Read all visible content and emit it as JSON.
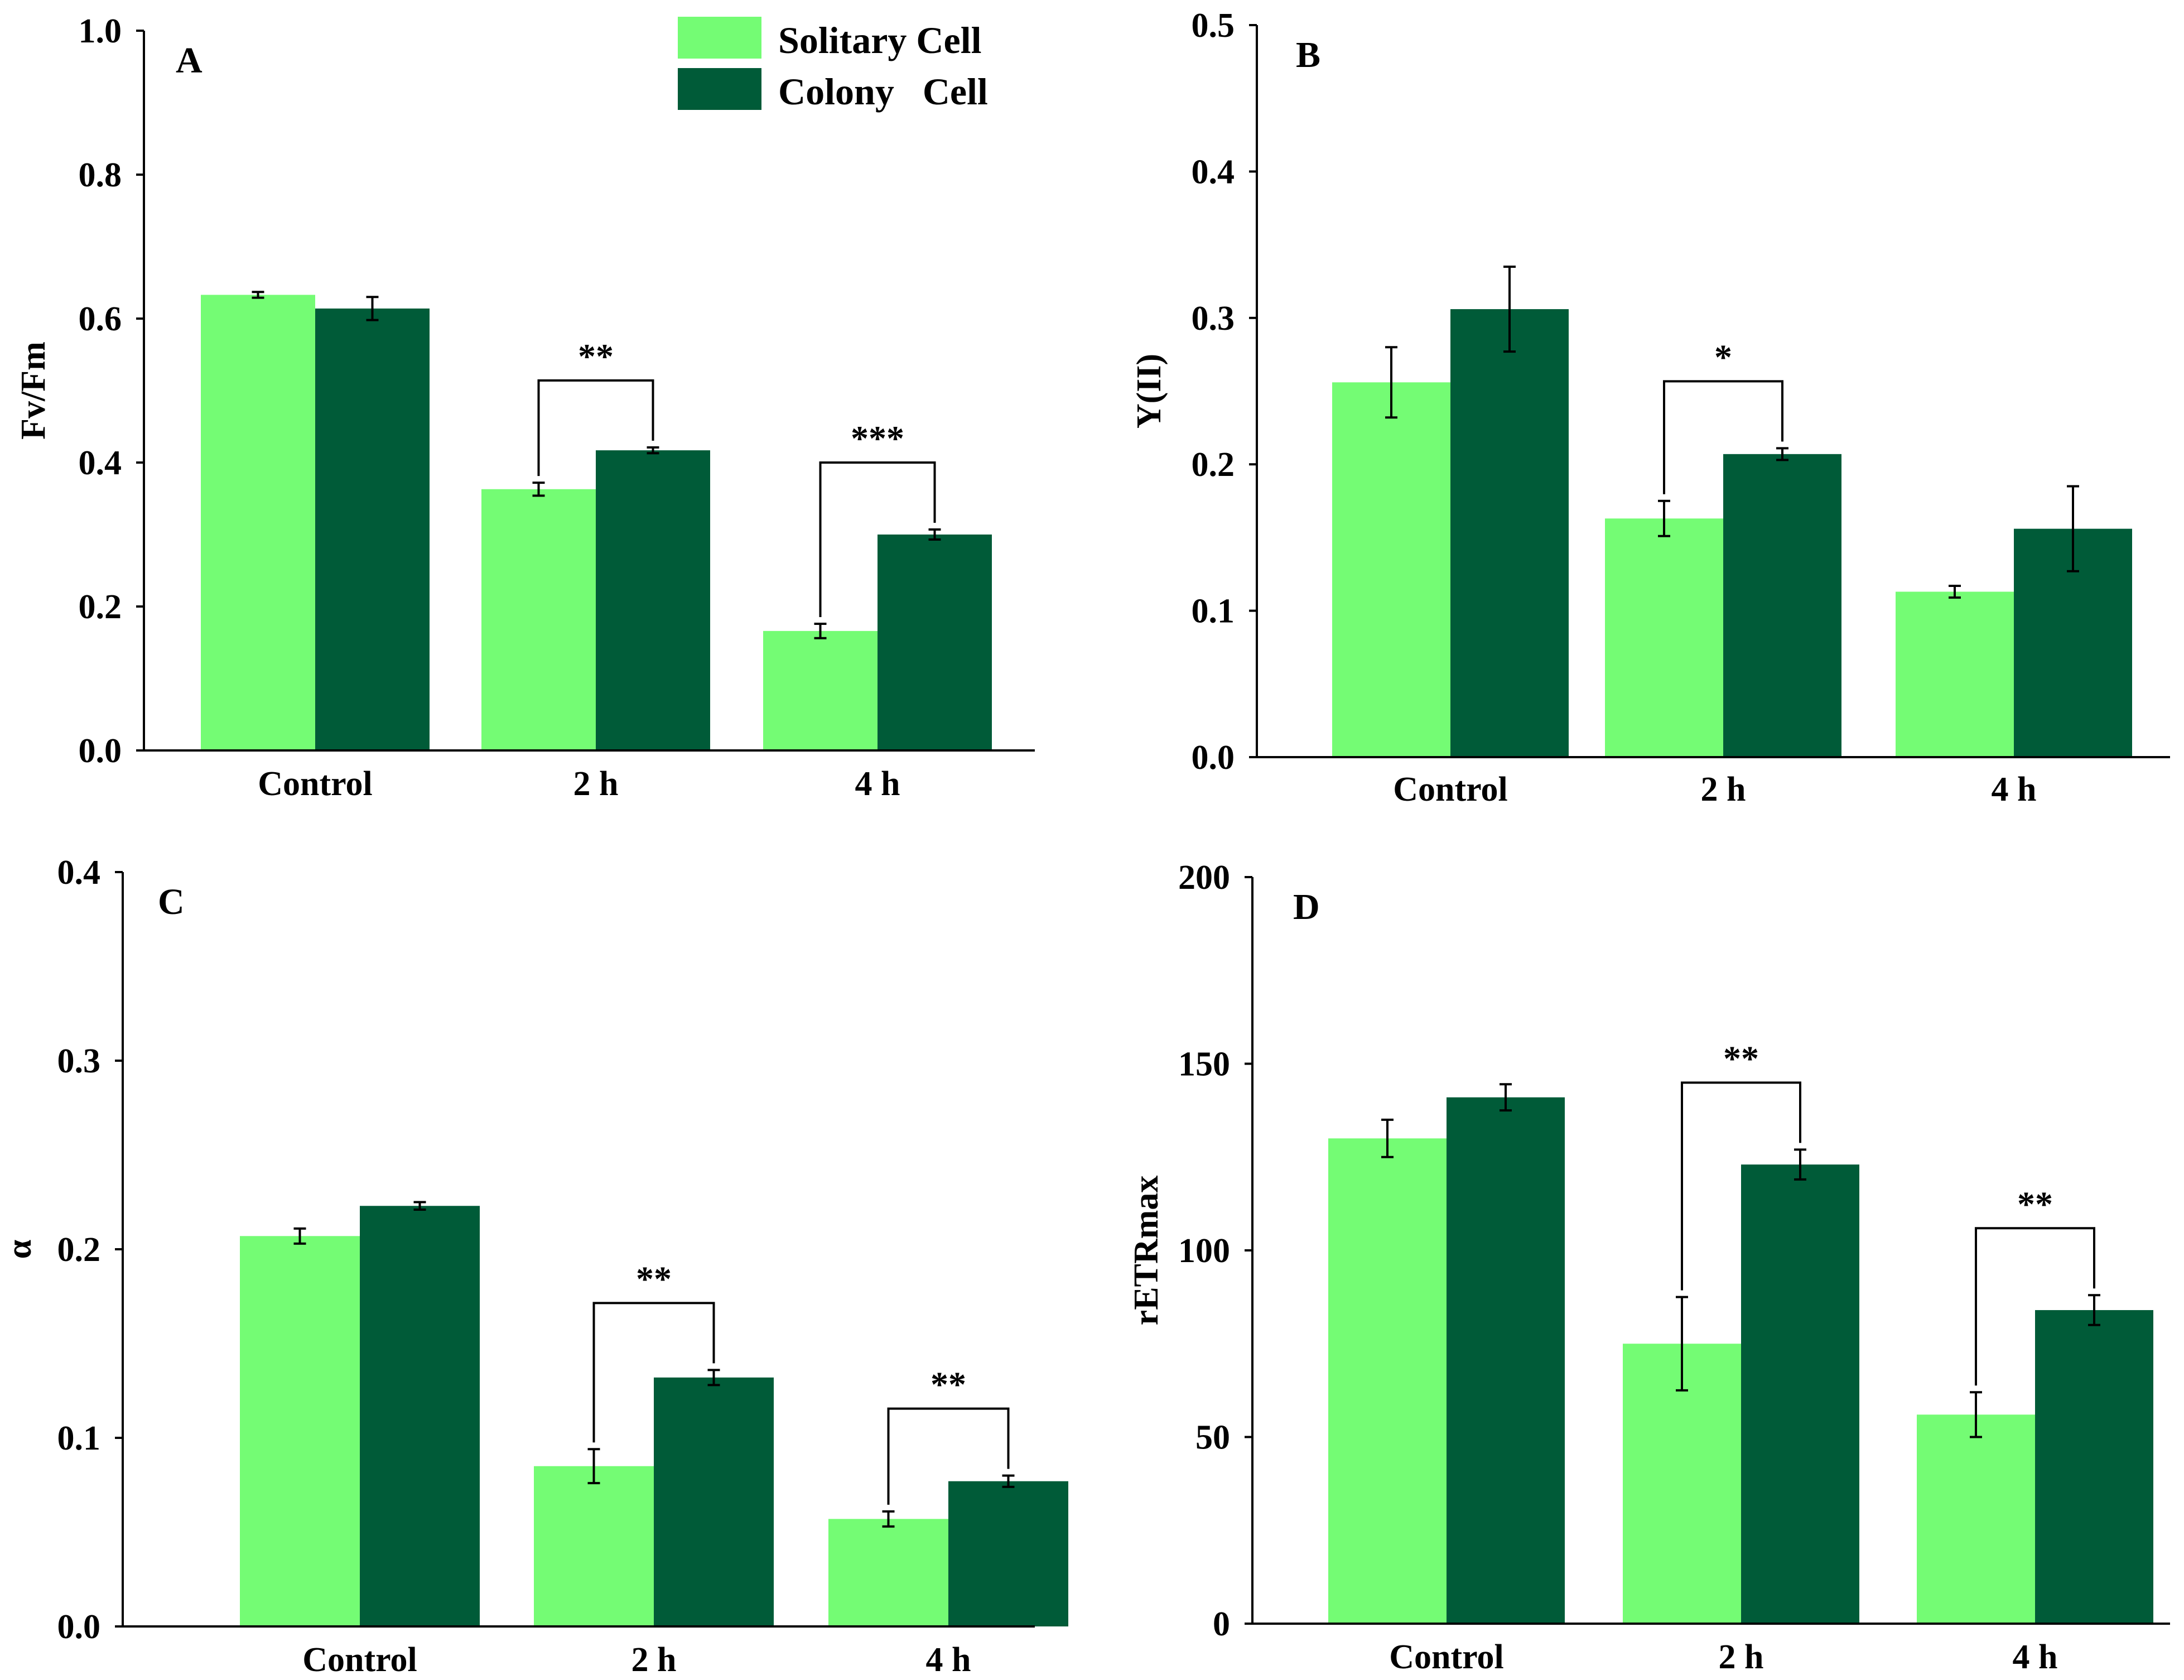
{
  "legend": {
    "entries": [
      {
        "label": "Solitary Cell",
        "color": "#74fc74"
      },
      {
        "label": "Colony   Cell",
        "color": "#005b38"
      }
    ]
  },
  "chart_data": [
    {
      "panel": "A",
      "type": "bar",
      "ylabel": "Fv/Fm",
      "ylim": [
        0,
        1.0
      ],
      "yticks": [
        "0.0",
        "0.2",
        "0.4",
        "0.6",
        "0.8",
        "1.0"
      ],
      "categories": [
        "Control",
        "2 h",
        "4 h"
      ],
      "series": [
        {
          "name": "Solitary Cell",
          "color": "#74fc74",
          "values": [
            0.633,
            0.363,
            0.166
          ],
          "errors": [
            0.004,
            0.009,
            0.01
          ]
        },
        {
          "name": "Colony   Cell",
          "color": "#005b38",
          "values": [
            0.614,
            0.417,
            0.3
          ],
          "errors": [
            0.016,
            0.004,
            0.007
          ]
        }
      ],
      "significance": [
        {
          "category": "2 h",
          "label": "**"
        },
        {
          "category": "4 h",
          "label": "***"
        }
      ]
    },
    {
      "panel": "B",
      "type": "bar",
      "ylabel": "Y(II)",
      "ylim": [
        0,
        0.5
      ],
      "yticks": [
        "0.0",
        "0.1",
        "0.2",
        "0.3",
        "0.4",
        "0.5"
      ],
      "categories": [
        "Control",
        "2 h",
        "4 h"
      ],
      "series": [
        {
          "name": "Solitary Cell",
          "color": "#74fc74",
          "values": [
            0.256,
            0.163,
            0.113
          ],
          "errors": [
            0.024,
            0.012,
            0.004
          ]
        },
        {
          "name": "Colony   Cell",
          "color": "#005b38",
          "values": [
            0.306,
            0.207,
            0.156
          ],
          "errors": [
            0.029,
            0.004,
            0.029
          ]
        }
      ],
      "significance": [
        {
          "category": "2 h",
          "label": "*"
        }
      ]
    },
    {
      "panel": "C",
      "type": "bar",
      "ylabel": "α",
      "ylim": [
        0,
        0.4
      ],
      "yticks": [
        "0.0",
        "0.1",
        "0.2",
        "0.3",
        "0.4"
      ],
      "categories": [
        "Control",
        "2 h",
        "4 h"
      ],
      "series": [
        {
          "name": "Solitary Cell",
          "color": "#74fc74",
          "values": [
            0.207,
            0.085,
            0.057
          ],
          "errors": [
            0.004,
            0.009,
            0.004
          ]
        },
        {
          "name": "Colony   Cell",
          "color": "#005b38",
          "values": [
            0.223,
            0.132,
            0.077
          ],
          "errors": [
            0.002,
            0.004,
            0.003
          ]
        }
      ],
      "significance": [
        {
          "category": "2 h",
          "label": "**"
        },
        {
          "category": "4 h",
          "label": "**"
        }
      ]
    },
    {
      "panel": "D",
      "type": "bar",
      "ylabel": "rETRmax",
      "ylim": [
        0,
        200
      ],
      "yticks": [
        "0",
        "50",
        "100",
        "150",
        "200"
      ],
      "categories": [
        "Control",
        "2 h",
        "4 h"
      ],
      "series": [
        {
          "name": "Solitary Cell",
          "color": "#74fc74",
          "values": [
            130,
            75,
            56
          ],
          "errors": [
            5,
            12.5,
            6
          ]
        },
        {
          "name": "Colony   Cell",
          "color": "#005b38",
          "values": [
            141,
            123,
            84
          ],
          "errors": [
            3.5,
            4,
            4
          ]
        }
      ],
      "significance": [
        {
          "category": "2 h",
          "label": "**"
        },
        {
          "category": "4 h",
          "label": "**"
        }
      ]
    }
  ]
}
